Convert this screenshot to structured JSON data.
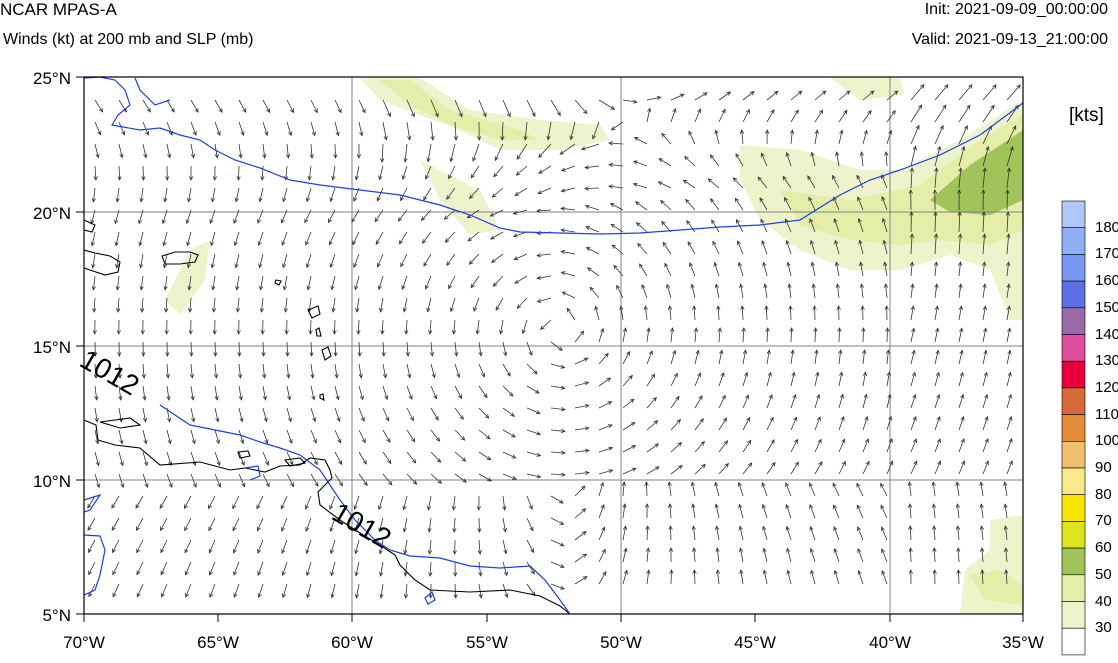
{
  "header": {
    "model": "NCAR MPAS-A",
    "field": "Winds (kt) at 200 mb and SLP (mb)",
    "init": "Init: 2021-09-09_00:00:00",
    "valid": "Valid: 2021-09-13_21:00:00"
  },
  "map": {
    "lat_labels": [
      "25°N",
      "20°N",
      "15°N",
      "10°N",
      "5°N"
    ],
    "lon_labels": [
      "70°W",
      "65°W",
      "60°W",
      "55°W",
      "50°W",
      "45°W",
      "40°W",
      "35°W"
    ],
    "lon_range": [
      -70,
      -35
    ],
    "lat_range": [
      5,
      25
    ],
    "isobar_labels": [
      "1012",
      "1012"
    ],
    "isobar_color": "#1f3fe0",
    "coast_color": "#000000"
  },
  "colorbar": {
    "units": "[kts]",
    "levels": [
      "180",
      "170",
      "160",
      "150",
      "140",
      "130",
      "120",
      "110",
      "100",
      "90",
      "80",
      "70",
      "60",
      "50",
      "40",
      "30"
    ],
    "colors": [
      "#b0c8f5",
      "#8fb0f4",
      "#7897f0",
      "#5b6fe6",
      "#9a6aa8",
      "#e04ea0",
      "#e8003c",
      "#d66a3a",
      "#e28c3c",
      "#f0c06e",
      "#fae88a",
      "#f8e400",
      "#dce41e",
      "#a0c45a",
      "#e4eea8",
      "#eef3cc",
      "#ffffff"
    ]
  }
}
